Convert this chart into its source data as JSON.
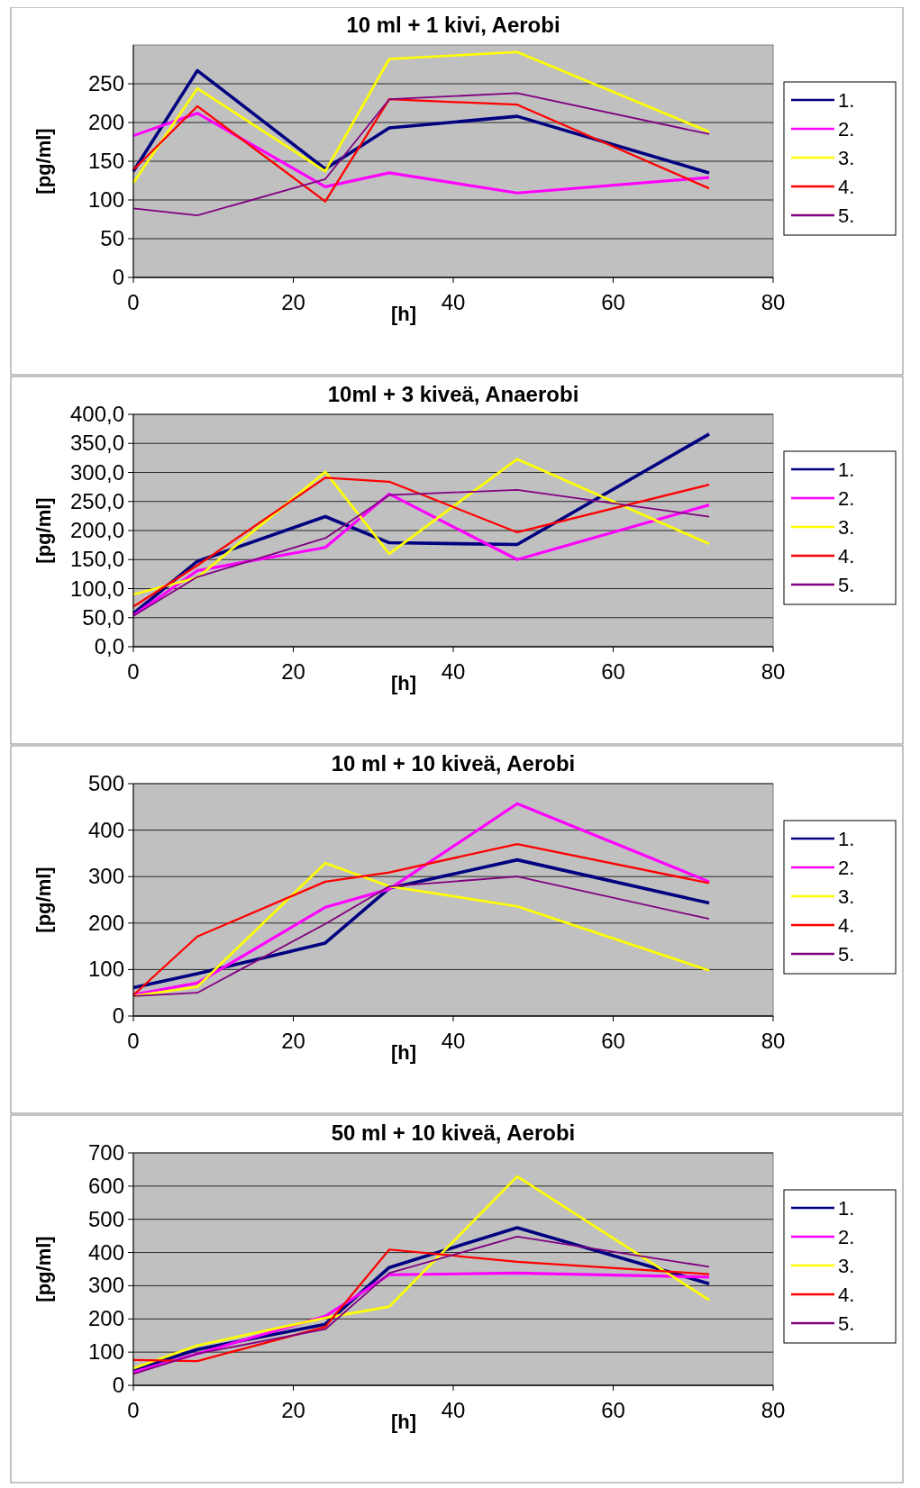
{
  "chart_data": [
    {
      "type": "line",
      "title": "10 ml + 1 kivi, Aerobi",
      "xlabel": "[h]",
      "ylabel": "[pg/ml]",
      "x": [
        0,
        8,
        24,
        32,
        48,
        72
      ],
      "xlim": [
        0,
        80
      ],
      "xticks": [
        0,
        20,
        40,
        60,
        80
      ],
      "ylim": [
        0,
        300
      ],
      "yticks": [
        0,
        50,
        100,
        150,
        200,
        250
      ],
      "grid": "y",
      "legend": "right",
      "series": [
        {
          "name": "1.",
          "color": "#000080",
          "values": [
            137,
            267,
            140,
            193,
            208,
            135
          ]
        },
        {
          "name": "2.",
          "color": "#ff00ff",
          "values": [
            183,
            212,
            117,
            135,
            109,
            129
          ]
        },
        {
          "name": "3.",
          "color": "#ffff00",
          "values": [
            122,
            244,
            137,
            282,
            291,
            188
          ]
        },
        {
          "name": "4.",
          "color": "#ff0000",
          "values": [
            139,
            221,
            98,
            230,
            223,
            115
          ]
        },
        {
          "name": "5.",
          "color": "#800080",
          "values": [
            89,
            80,
            127,
            230,
            238,
            185
          ]
        }
      ]
    },
    {
      "type": "line",
      "title": "10ml + 3 kiveä, Anaerobi",
      "xlabel": "[h]",
      "ylabel": "[pg/ml]",
      "x": [
        0,
        8,
        24,
        32,
        48,
        72
      ],
      "xlim": [
        0,
        80
      ],
      "xticks": [
        0,
        20,
        40,
        60,
        80
      ],
      "ylim": [
        0,
        400
      ],
      "yticks": [
        {
          "value": 0,
          "label": "0,0"
        },
        {
          "value": 50,
          "label": "50,0"
        },
        {
          "value": 100,
          "label": "100,0"
        },
        {
          "value": 150,
          "label": "150,0"
        },
        {
          "value": 200,
          "label": "200,0"
        },
        {
          "value": 250,
          "label": "250,0"
        },
        {
          "value": 300,
          "label": "300,0"
        },
        {
          "value": 350,
          "label": "350,0"
        },
        {
          "value": 400,
          "label": "400,0"
        }
      ],
      "grid": "y",
      "legend": "right",
      "series": [
        {
          "name": "1.",
          "color": "#000080",
          "values": [
            57,
            147,
            224,
            179,
            176,
            366
          ]
        },
        {
          "name": "2.",
          "color": "#ff00ff",
          "values": [
            54,
            131,
            171,
            263,
            150,
            244
          ]
        },
        {
          "name": "3.",
          "color": "#ffff00",
          "values": [
            90,
            119,
            301,
            160,
            323,
            177
          ]
        },
        {
          "name": "4.",
          "color": "#ff0000",
          "values": [
            69,
            140,
            291,
            284,
            197,
            279
          ]
        },
        {
          "name": "5.",
          "color": "#800080",
          "values": [
            53,
            120,
            187,
            261,
            270,
            224
          ]
        }
      ]
    },
    {
      "type": "line",
      "title": "10 ml + 10 kiveä, Aerobi",
      "xlabel": "[h]",
      "ylabel": "[pg/ml]",
      "x": [
        0,
        8,
        24,
        32,
        48,
        72
      ],
      "xlim": [
        0,
        80
      ],
      "xticks": [
        0,
        20,
        40,
        60,
        80
      ],
      "ylim": [
        0,
        500
      ],
      "yticks": [
        0,
        100,
        200,
        300,
        400,
        500
      ],
      "grid": "y",
      "legend": "right",
      "series": [
        {
          "name": "1.",
          "color": "#000080",
          "values": [
            61,
            91,
            157,
            275,
            336,
            243
          ]
        },
        {
          "name": "2.",
          "color": "#ff00ff",
          "values": [
            46,
            71,
            234,
            273,
            457,
            289
          ]
        },
        {
          "name": "3.",
          "color": "#ffff00",
          "values": [
            43,
            63,
            329,
            279,
            236,
            98
          ]
        },
        {
          "name": "4.",
          "color": "#ff0000",
          "values": [
            45,
            171,
            289,
            309,
            370,
            286
          ]
        },
        {
          "name": "5.",
          "color": "#800080",
          "values": [
            43,
            50,
            198,
            279,
            300,
            209
          ]
        }
      ]
    },
    {
      "type": "line",
      "title": "50 ml + 10 kiveä, Aerobi",
      "xlabel": "[h]",
      "ylabel": "[pg/ml]",
      "x": [
        0,
        8,
        24,
        32,
        48,
        72
      ],
      "xlim": [
        0,
        80
      ],
      "xticks": [
        0,
        20,
        40,
        60,
        80
      ],
      "ylim": [
        0,
        700
      ],
      "yticks": [
        0,
        100,
        200,
        300,
        400,
        500,
        600,
        700
      ],
      "grid": "y",
      "legend": "right",
      "series": [
        {
          "name": "1.",
          "color": "#000080",
          "values": [
            47,
            108,
            184,
            355,
            475,
            306
          ]
        },
        {
          "name": "2.",
          "color": "#ff00ff",
          "values": [
            39,
            95,
            208,
            333,
            338,
            326
          ]
        },
        {
          "name": "3.",
          "color": "#ffff00",
          "values": [
            51,
            120,
            203,
            237,
            629,
            257
          ]
        },
        {
          "name": "4.",
          "color": "#ff0000",
          "values": [
            76,
            73,
            176,
            409,
            372,
            335
          ]
        },
        {
          "name": "5.",
          "color": "#800080",
          "values": [
            34,
            95,
            169,
            338,
            448,
            357
          ]
        }
      ]
    }
  ]
}
